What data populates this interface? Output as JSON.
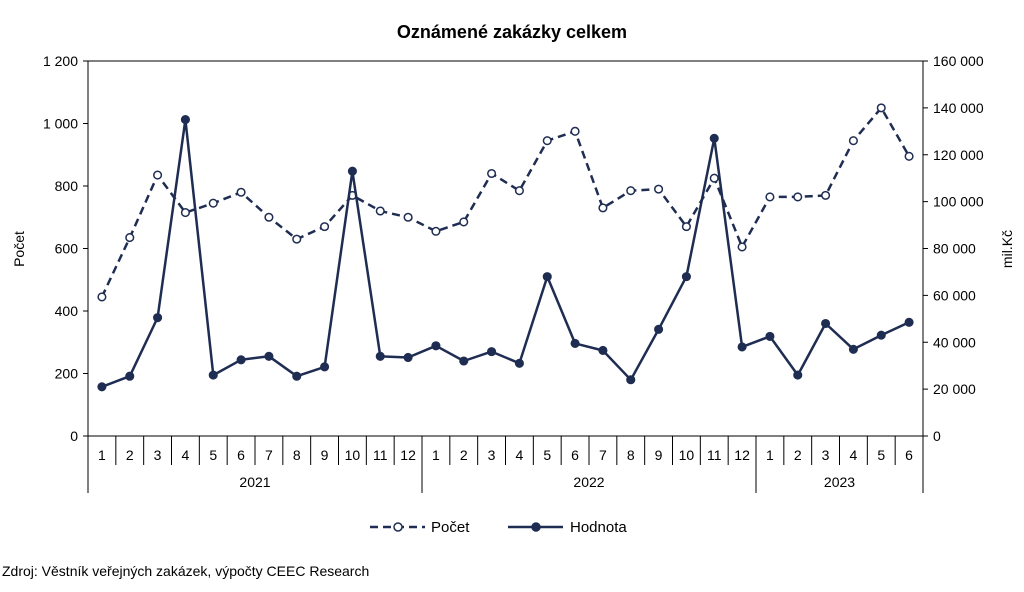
{
  "chart_data": {
    "type": "line",
    "title": "Oznámené zakázky celkem",
    "ylabel": "Počet",
    "y2label": "mil.Kč",
    "ylim": [
      0,
      1200
    ],
    "y2lim": [
      0,
      160000
    ],
    "yticks": [
      "0",
      "200",
      "400",
      "600",
      "800",
      "1 000",
      "1 200"
    ],
    "y2ticks": [
      "0",
      "20 000",
      "40 000",
      "60 000",
      "80 000",
      "100 000",
      "120 000",
      "140 000",
      "160 000"
    ],
    "months": [
      "1",
      "2",
      "3",
      "4",
      "5",
      "6",
      "7",
      "8",
      "9",
      "10",
      "11",
      "12",
      "1",
      "2",
      "3",
      "4",
      "5",
      "6",
      "7",
      "8",
      "9",
      "10",
      "11",
      "12",
      "1",
      "2",
      "3",
      "4",
      "5",
      "6"
    ],
    "year_groups": [
      {
        "label": "2021",
        "count": 12
      },
      {
        "label": "2022",
        "count": 12
      },
      {
        "label": "2023",
        "count": 6
      }
    ],
    "series": [
      {
        "name": "Počet",
        "axis": "left",
        "style": "dashed-open-markers",
        "color": "#1f2d52",
        "values": [
          445,
          635,
          835,
          715,
          745,
          780,
          700,
          630,
          670,
          770,
          720,
          700,
          655,
          685,
          840,
          785,
          945,
          975,
          730,
          785,
          790,
          670,
          825,
          605,
          765,
          765,
          770,
          945,
          1050,
          895
        ]
      },
      {
        "name": "Hodnota",
        "axis": "right",
        "style": "solid-filled-markers",
        "color": "#1f2d52",
        "values": [
          21000,
          25500,
          50500,
          135000,
          26000,
          32500,
          34000,
          25500,
          29500,
          113000,
          34000,
          33500,
          38500,
          32000,
          36000,
          31000,
          68000,
          39500,
          36500,
          24000,
          45500,
          68000,
          127000,
          38000,
          42500,
          26000,
          48000,
          37000,
          43000,
          48500
        ]
      }
    ],
    "legend": "bottom-center",
    "grid": false
  },
  "source_note": "Zdroj: Věstník veřejných zakázek, výpočty CEEC Research"
}
